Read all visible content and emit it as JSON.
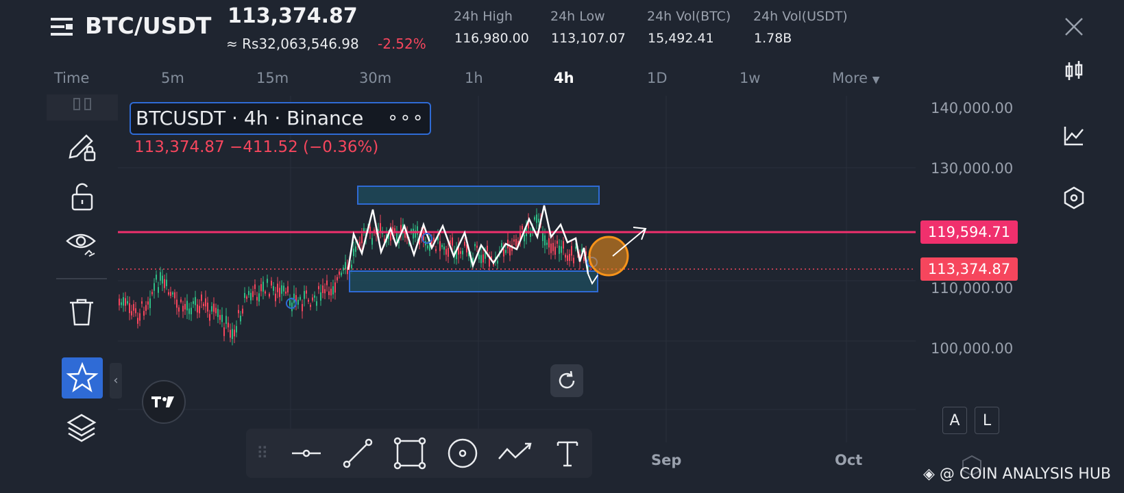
{
  "header": {
    "pair": "BTC/USDT",
    "last_price": "113,374.87",
    "local_price": "≈ Rs32,063,546.98",
    "change_pct": "-2.52%",
    "stats": [
      {
        "label": "24h High",
        "value": "116,980.00"
      },
      {
        "label": "24h Low",
        "value": "113,107.07"
      },
      {
        "label": "24h Vol(BTC)",
        "value": "15,492.41"
      },
      {
        "label": "24h Vol(USDT)",
        "value": "1.78B"
      }
    ]
  },
  "timeframes": {
    "items": [
      "Time",
      "5m",
      "15m",
      "30m",
      "1h",
      "4h",
      "1D",
      "1w",
      "More"
    ],
    "active": "4h"
  },
  "legend": {
    "title": "BTCUSDT · 4h · Binance",
    "dots": "∘∘∘",
    "change": "113,374.87  −411.52 (−0.36%)"
  },
  "price_axis": {
    "ticks": [
      "140,000.00",
      "130,000.00",
      "110,000.00",
      "100,000.00"
    ],
    "resistance_tag": "119,594.71",
    "last_price_tag": "113,374.87"
  },
  "time_axis": {
    "ticks": [
      "Sep",
      "Oct"
    ]
  },
  "mode_buttons": {
    "auto": "A",
    "log": "L"
  },
  "watermark": "@ COIN ANALYSIS HUB",
  "colors": {
    "background": "#1f2530",
    "up": "#2ebd85",
    "down": "#f6465d",
    "accent": "#2f6bd6",
    "resistance": "#f0306d",
    "highlight": "#f7931a"
  },
  "left_toolbar_icons": [
    "pencil-lock-icon",
    "unlock-icon",
    "eye-icon",
    "trash-icon",
    "star-icon",
    "layers-icon"
  ],
  "right_toolbar_icons": [
    "candles-icon",
    "indicator-icon",
    "hexagon-icon"
  ],
  "drawing_tools": [
    "horizontal-line-icon",
    "trend-line-icon",
    "rectangle-icon",
    "circle-icon",
    "path-icon",
    "text-icon"
  ]
}
